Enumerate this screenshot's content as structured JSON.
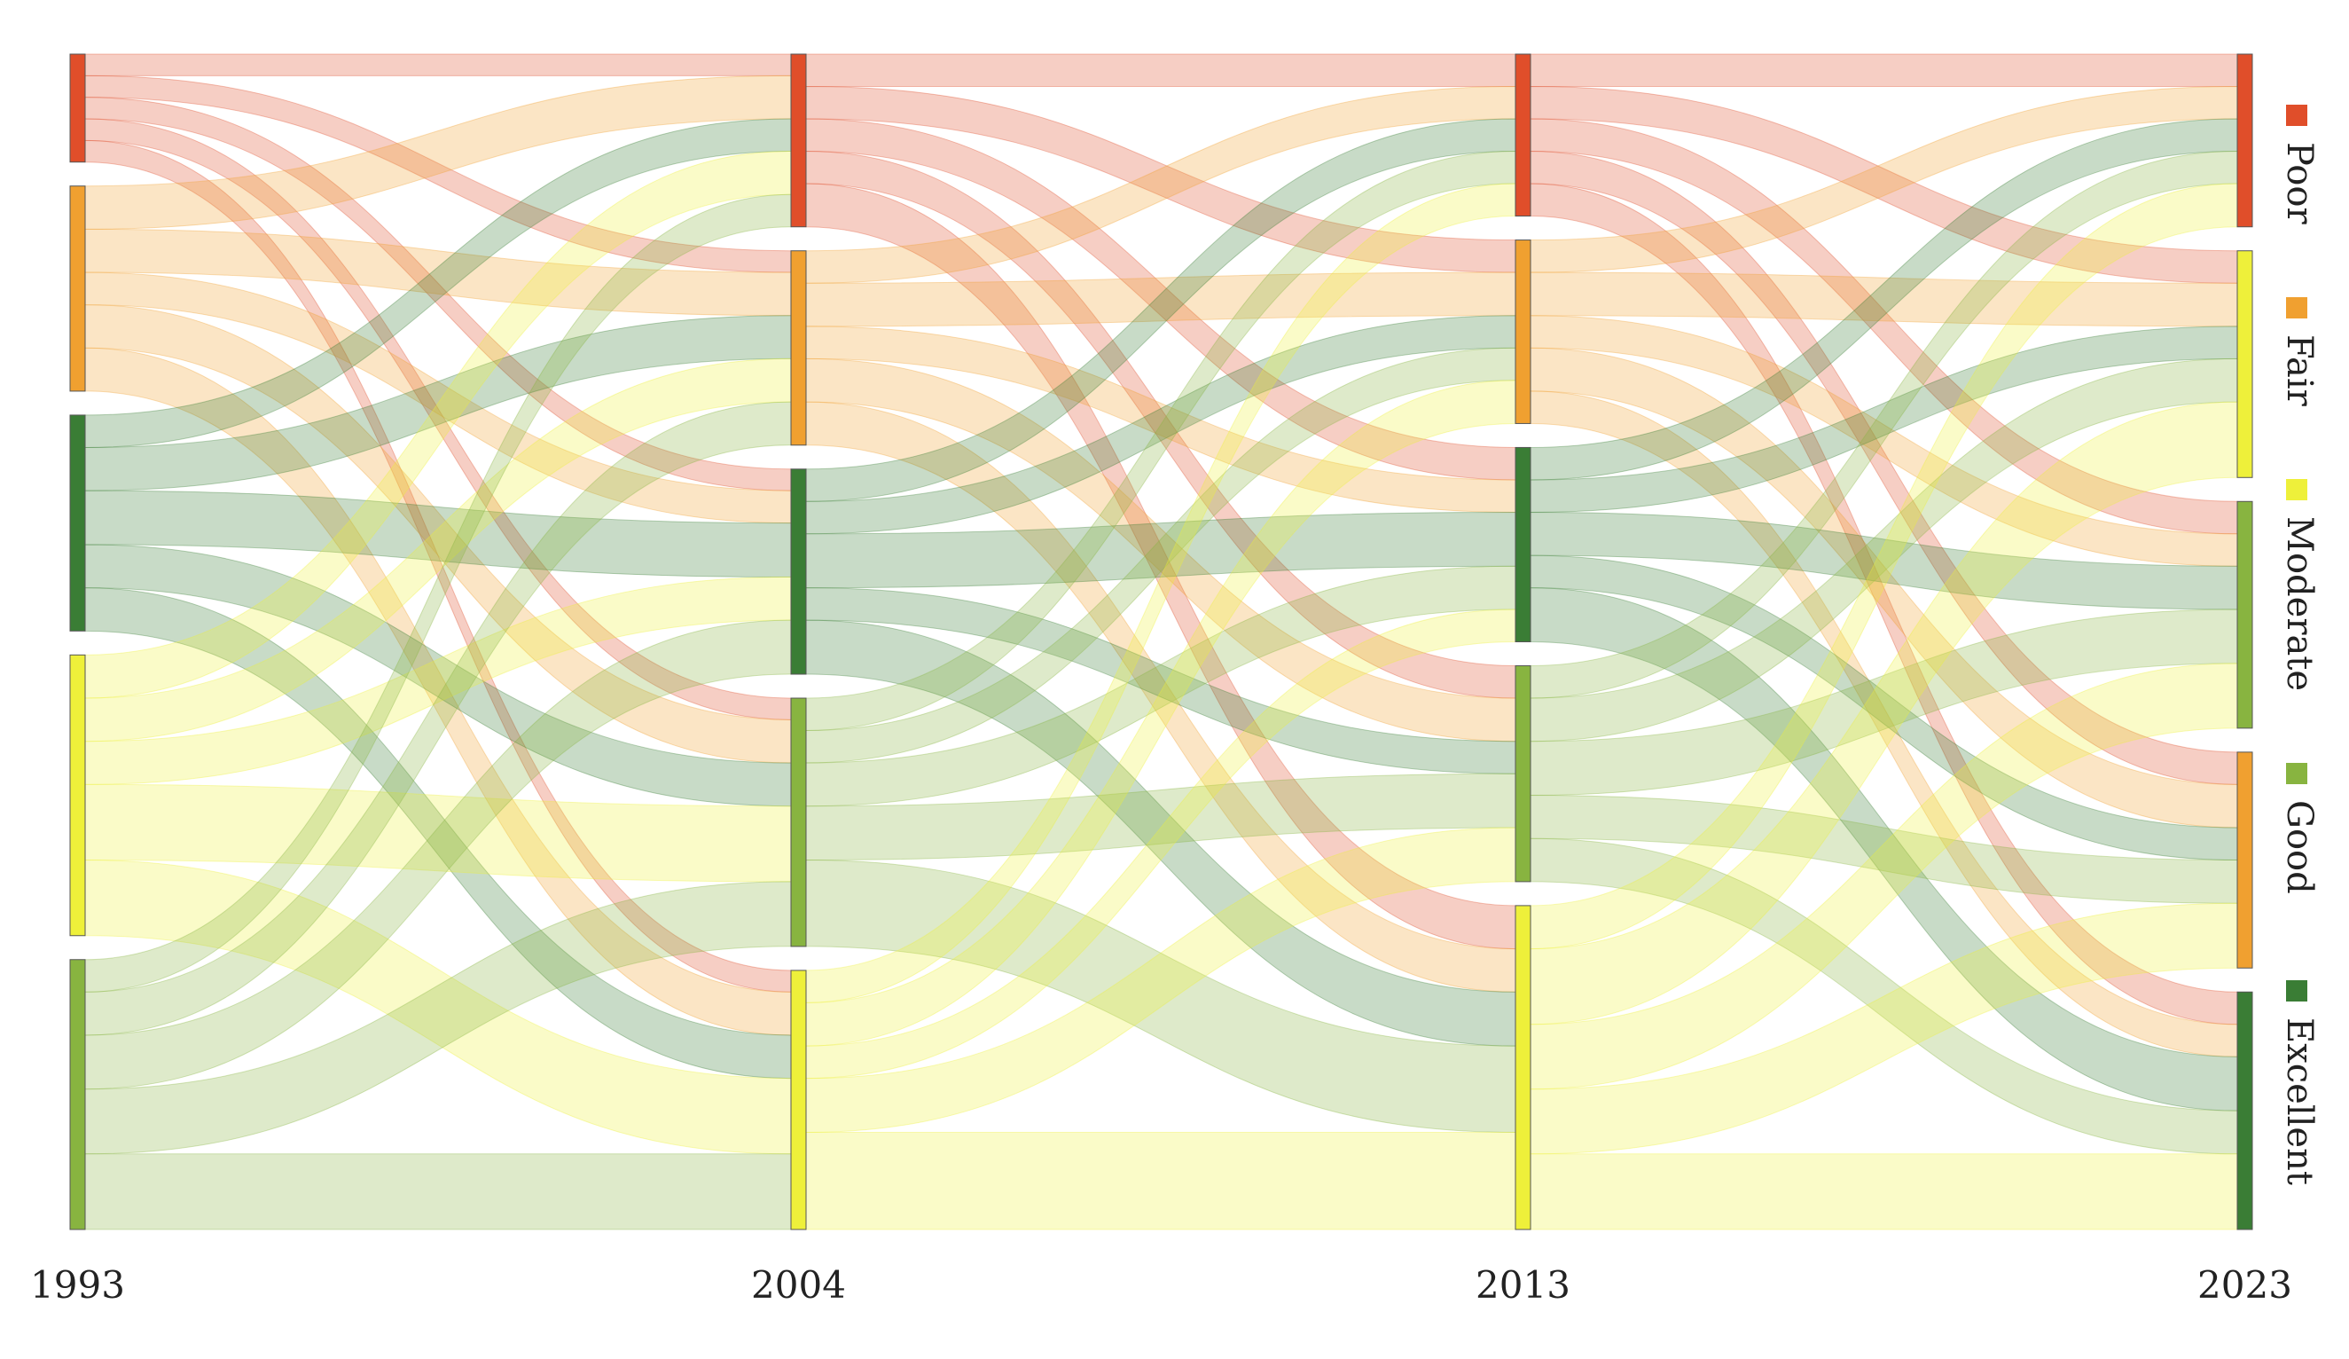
{
  "chart_data": {
    "type": "sankey",
    "categories": [
      {
        "name": "Poor",
        "color": "#e04e2a"
      },
      {
        "name": "Fair",
        "color": "#f0a030"
      },
      {
        "name": "Moderate",
        "color": "#eef03a"
      },
      {
        "name": "Good",
        "color": "#88b440"
      },
      {
        "name": "Excellent",
        "color": "#3a7d35"
      }
    ],
    "columns": [
      {
        "label": "1993",
        "nodes": [
          {
            "category": 0,
            "value": 10
          },
          {
            "category": 1,
            "value": 19
          },
          {
            "category": 4,
            "value": 20
          },
          {
            "category": 2,
            "value": 26
          },
          {
            "category": 3,
            "value": 25
          }
        ]
      },
      {
        "label": "2004",
        "nodes": [
          {
            "category": 0,
            "value": 16
          },
          {
            "category": 1,
            "value": 18
          },
          {
            "category": 4,
            "value": 19
          },
          {
            "category": 3,
            "value": 23
          },
          {
            "category": 2,
            "value": 24
          }
        ]
      },
      {
        "label": "2013",
        "nodes": [
          {
            "category": 0,
            "value": 15
          },
          {
            "category": 1,
            "value": 17
          },
          {
            "category": 4,
            "value": 18
          },
          {
            "category": 3,
            "value": 20
          },
          {
            "category": 2,
            "value": 30
          }
        ]
      },
      {
        "label": "2023",
        "nodes": [
          {
            "category": 0,
            "value": 16
          },
          {
            "category": 2,
            "value": 21
          },
          {
            "category": 3,
            "value": 21
          },
          {
            "category": 1,
            "value": 20
          },
          {
            "category": 4,
            "value": 22
          }
        ]
      }
    ],
    "flows": [
      [
        [
          2,
          2,
          2,
          2,
          2
        ],
        [
          4,
          4,
          3,
          4,
          4
        ],
        [
          3,
          4,
          5,
          4,
          4
        ],
        [
          4,
          4,
          4,
          7,
          7
        ],
        [
          3,
          4,
          5,
          6,
          7
        ]
      ],
      [
        [
          3,
          3,
          3,
          3,
          4
        ],
        [
          3,
          4,
          3,
          4,
          4
        ],
        [
          3,
          3,
          5,
          3,
          5
        ],
        [
          3,
          3,
          4,
          5,
          8
        ],
        [
          3,
          4,
          3,
          5,
          9
        ]
      ],
      [
        [
          3,
          3,
          3,
          3,
          3
        ],
        [
          3,
          4,
          3,
          4,
          3
        ],
        [
          3,
          3,
          4,
          3,
          5
        ],
        [
          3,
          4,
          5,
          4,
          4
        ],
        [
          4,
          7,
          6,
          6,
          7
        ]
      ]
    ]
  }
}
